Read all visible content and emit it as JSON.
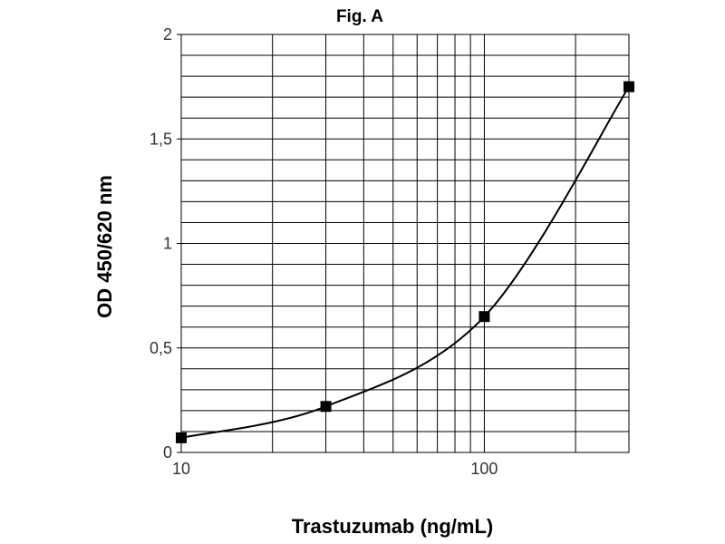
{
  "chart_data": {
    "type": "line",
    "title": "Fig. A",
    "xlabel": "Trastuzumab (ng/mL)",
    "ylabel": "OD 450/620 nm",
    "x_scale": "log",
    "xlim": [
      10,
      300
    ],
    "ylim": [
      0,
      2
    ],
    "x_ticks": [
      {
        "value": 10,
        "label": "10"
      },
      {
        "value": 100,
        "label": "100"
      }
    ],
    "y_ticks": [
      {
        "value": 0,
        "label": "0"
      },
      {
        "value": 0.5,
        "label": "0,5"
      },
      {
        "value": 1,
        "label": "1"
      },
      {
        "value": 1.5,
        "label": "1,5"
      },
      {
        "value": 2,
        "label": "2"
      }
    ],
    "y_minor_step": 0.1,
    "grid": true,
    "legend": "none",
    "series": [
      {
        "x": [
          10,
          30,
          100,
          300
        ],
        "y": [
          0.07,
          0.22,
          0.65,
          1.75
        ],
        "marker": "square",
        "line": "smooth",
        "color": "#000000"
      }
    ]
  }
}
